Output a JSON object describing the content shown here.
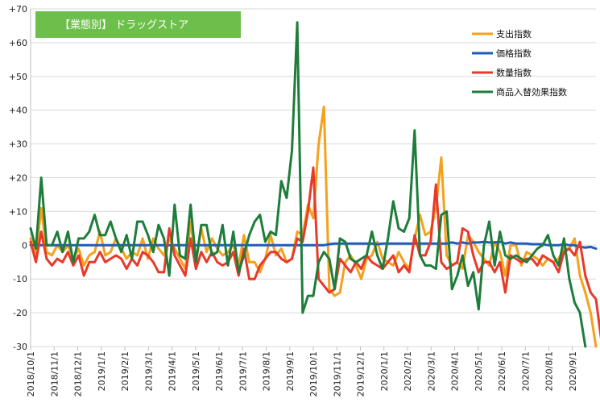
{
  "chart_data": {
    "type": "line",
    "title": "【業態別】 ドラッグストア",
    "title_background_color": "#6dbf4b",
    "ylim": [
      -30,
      70
    ],
    "yticks": [
      -30,
      -20,
      -10,
      0,
      10,
      20,
      30,
      40,
      50,
      60,
      70
    ],
    "ytick_labels": [
      "-30",
      "-20",
      "-10",
      "0",
      "+10",
      "+20",
      "+30",
      "+40",
      "+50",
      "+60",
      "+70"
    ],
    "x_tick_labels": [
      "2018/10/1",
      "2018/11/1",
      "2018/12/1",
      "2019/1/1",
      "2019/2/1",
      "2019/3/1",
      "2019/4/1",
      "2019/5/1",
      "2019/6/1",
      "2019/7/1",
      "2019/8/1",
      "2019/9/1",
      "2019/10/1",
      "2019/11/1",
      "2019/12/1",
      "2020/1/1",
      "2020/2/1",
      "2020/3/1",
      "2020/4/1",
      "2020/5/1",
      "2020/6/1",
      "2020/7/1",
      "2020/8/1",
      "2020/9/1"
    ],
    "grid": "horizontal",
    "legend_position": "top-right",
    "series": [
      {
        "name": "支出指数",
        "color": "#f4a11c",
        "values": [
          2,
          -3,
          11,
          -2,
          -3,
          0,
          -2,
          0,
          -4,
          -1,
          -6,
          -3,
          -2,
          4,
          -3,
          -2,
          2,
          -1,
          -4,
          -2,
          -3,
          2,
          -4,
          2,
          -1,
          -3,
          2,
          -1,
          -4,
          -7,
          7,
          -5,
          5,
          -2,
          2,
          -1,
          -3,
          -2,
          0,
          -6,
          3,
          -5,
          -5,
          -8,
          -4,
          3,
          -3,
          -1,
          -5,
          -4,
          4,
          3,
          12,
          8,
          30,
          41,
          -13,
          -15,
          -14,
          -5,
          -3,
          -6,
          -10,
          -4,
          -3,
          1,
          -4,
          -5,
          -6,
          -2,
          -5,
          -7,
          2,
          9,
          3,
          4,
          11,
          26,
          -3,
          -6,
          -5,
          -7,
          3,
          1,
          -2,
          -4,
          -6,
          1,
          -2,
          -9,
          0,
          0,
          -6,
          -2,
          -3,
          -4,
          -6,
          -4,
          -5,
          -4,
          -1,
          -1,
          2,
          -9,
          -14,
          -20,
          -30
        ]
      },
      {
        "name": "価格指数",
        "color": "#1f5cbf",
        "values": [
          0,
          0,
          0,
          0,
          0,
          0,
          0,
          0,
          0,
          0,
          0,
          0,
          0,
          0,
          0,
          0,
          0,
          0,
          0,
          0,
          0,
          0,
          0,
          0,
          0,
          0,
          0,
          0,
          0,
          0,
          0,
          0,
          0,
          0,
          0,
          0,
          0,
          0,
          0,
          0,
          0,
          0,
          0,
          0,
          0,
          0,
          0,
          0,
          0,
          0,
          0,
          0,
          0,
          0,
          0,
          0,
          0.3,
          0.5,
          0.5,
          0.5,
          0.5,
          0.5,
          0.5,
          0.5,
          0.5,
          0.3,
          0.5,
          0.5,
          0.5,
          0.5,
          0.5,
          0.5,
          0.5,
          0.5,
          0.5,
          0.5,
          0.5,
          0.5,
          0.5,
          0.8,
          0.5,
          0.8,
          0.5,
          0.8,
          0.8,
          1,
          0.8,
          0.8,
          1,
          0.5,
          0.8,
          0.5,
          0.5,
          0.5,
          0.3,
          0.3,
          0.3,
          0,
          0,
          0,
          0.3,
          0,
          0,
          -0.5,
          -0.7,
          -0.5,
          -1
        ]
      },
      {
        "name": "数量指数",
        "color": "#e8392a",
        "values": [
          1,
          -5,
          4,
          -4,
          -6,
          -4,
          -5,
          -2,
          -6,
          -3,
          -9,
          -5,
          -5,
          -2,
          -5,
          -4,
          -3,
          -4,
          -7,
          -4,
          -6,
          -2,
          -3,
          -5,
          -8,
          -8,
          5,
          -3,
          -6,
          -9,
          2,
          -7,
          -2,
          -5,
          -2,
          -5,
          -6,
          -5,
          -2,
          -9,
          -1,
          -10,
          -10,
          -6,
          -4,
          -2,
          -2,
          -4,
          -5,
          -4,
          2,
          1,
          10,
          23,
          -10,
          -12,
          -14,
          -13,
          -4,
          -6,
          -8,
          -5,
          -7,
          -3,
          -5,
          -6,
          -7,
          -5,
          -3,
          -8,
          -6,
          -8,
          3,
          -3,
          -3,
          1,
          18,
          -5,
          -7,
          -6,
          -5,
          5,
          4,
          -3,
          -8,
          -5,
          -5,
          -8,
          -5,
          -14,
          -3,
          -4,
          -5,
          -4,
          -4,
          -6,
          -3,
          -4,
          -5,
          -8,
          -2,
          -1,
          -3,
          1,
          -9,
          -14,
          -16,
          -28
        ]
      },
      {
        "name": "商品入替効果指数",
        "color": "#1e7d3a",
        "values": [
          5,
          -1,
          20,
          0,
          0,
          4,
          -2,
          4,
          -5,
          2,
          2,
          4,
          9,
          3,
          3,
          7,
          2,
          -2,
          3,
          -4,
          7,
          7,
          3,
          -2,
          6,
          2,
          -9,
          12,
          -3,
          -4,
          12,
          -5,
          6,
          6,
          -3,
          -2,
          6,
          -6,
          4,
          -8,
          -3,
          3,
          7,
          9,
          1,
          4,
          3,
          19,
          14,
          28,
          66,
          -20,
          -15,
          -15,
          -5,
          -2,
          -4,
          -13,
          2,
          1,
          -4,
          -5,
          -4,
          -3,
          4,
          -3,
          -7,
          2,
          13,
          5,
          4,
          8,
          34,
          -3,
          -6,
          -6,
          -7,
          9,
          10,
          -13,
          -9,
          -3,
          -12,
          -8,
          -19,
          0,
          7,
          -6,
          4,
          -3,
          -4,
          -3,
          -4,
          -5,
          -3,
          -1,
          0,
          3,
          -3,
          -6,
          2,
          -10,
          -17,
          -20,
          -30
        ]
      }
    ]
  }
}
